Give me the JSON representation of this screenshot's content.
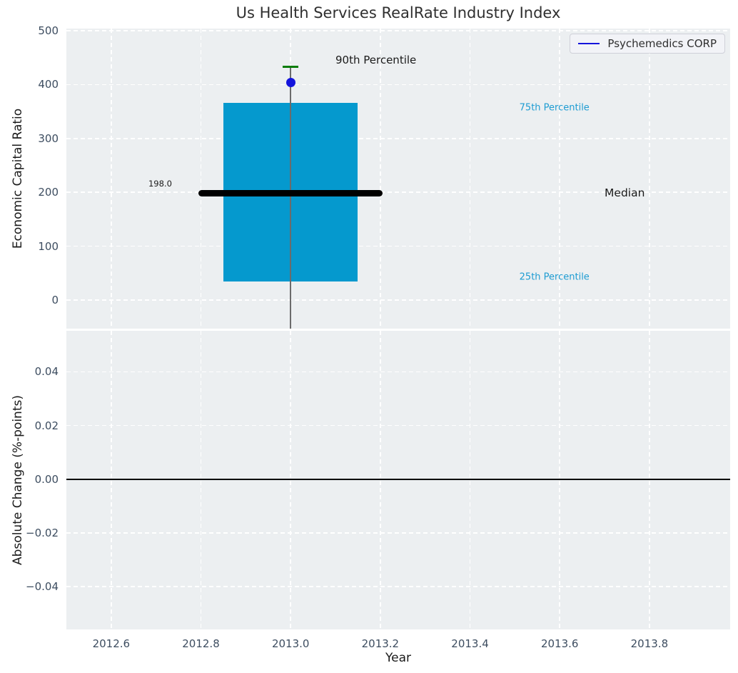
{
  "title": "Us Health Services RealRate Industry Index",
  "legend": {
    "label": "Psychemedics CORP",
    "position": "upper right"
  },
  "colors": {
    "axes_bg": "#ECEFF1",
    "grid": "#FFFFFF",
    "box_fill": "#0599CE",
    "median_line": "#000000",
    "percentile_cap": "#0B7D0B",
    "company_dot": "#1414DC",
    "whisker": "#6B6B6B",
    "tick_label": "#3D4D60",
    "axis_label": "#1A1A1A",
    "title_color": "#2F2F2F",
    "annotation_dark": "#1A1A1A",
    "annotation_cyan": "#1E9CD2",
    "zero_line": "#000000"
  },
  "chart_data": [
    {
      "type": "boxplot",
      "ylabel": "Economic Capital Ratio",
      "xlim": [
        2012.5,
        2013.98
      ],
      "ylim": [
        -53,
        504
      ],
      "grid": true,
      "legend_entries": [
        "Psychemedics CORP"
      ],
      "xticks": [
        {
          "v": 2012.6,
          "label": "2012.6"
        },
        {
          "v": 2012.8,
          "label": "2012.8"
        },
        {
          "v": 2013.0,
          "label": "2013.0"
        },
        {
          "v": 2013.2,
          "label": "2013.2"
        },
        {
          "v": 2013.4,
          "label": "2013.4"
        },
        {
          "v": 2013.6,
          "label": "2013.6"
        },
        {
          "v": 2013.8,
          "label": "2013.8"
        }
      ],
      "yticks": [
        {
          "v": 0,
          "label": "0"
        },
        {
          "v": 100,
          "label": "100"
        },
        {
          "v": 200,
          "label": "200"
        },
        {
          "v": 300,
          "label": "300"
        },
        {
          "v": 400,
          "label": "400"
        },
        {
          "v": 500,
          "label": "500"
        }
      ],
      "box": {
        "year": 2013.0,
        "x_center": 2013.0,
        "x_left": 2012.85,
        "x_right": 2013.15,
        "q1": 34,
        "median": 198,
        "q3": 366,
        "p90": 433,
        "company_value": 404,
        "median_line_x_left": 2012.795,
        "median_line_x_right": 2013.205,
        "cap_x_left": 2012.982,
        "cap_x_right": 2013.018,
        "whisker_bottom_clip": -53
      },
      "annotations": [
        {
          "text": "90th Percentile",
          "x": 2013.1,
          "y": 445,
          "color": "annotation_dark",
          "size": 15
        },
        {
          "text": "75th Percentile",
          "x": 2013.51,
          "y": 357,
          "color": "annotation_cyan",
          "size": 13
        },
        {
          "text": "Median",
          "x": 2013.7,
          "y": 199,
          "color": "annotation_dark",
          "size": 15.5
        },
        {
          "text": "25th Percentile",
          "x": 2013.51,
          "y": 43,
          "color": "annotation_cyan",
          "size": 13
        },
        {
          "text": "198.0",
          "x": 2012.683,
          "y": 216,
          "color": "annotation_dark",
          "size": 11.5
        }
      ]
    },
    {
      "type": "line",
      "xlabel": "Year",
      "ylabel": "Absolute Change (%-points)",
      "xlim": [
        2012.5,
        2013.98
      ],
      "ylim": [
        -0.056,
        0.0553
      ],
      "grid": true,
      "zero_line": 0.0,
      "series": [],
      "xticks": [
        {
          "v": 2012.6,
          "label": "2012.6"
        },
        {
          "v": 2012.8,
          "label": "2012.8"
        },
        {
          "v": 2013.0,
          "label": "2013.0"
        },
        {
          "v": 2013.2,
          "label": "2013.2"
        },
        {
          "v": 2013.4,
          "label": "2013.4"
        },
        {
          "v": 2013.6,
          "label": "2013.6"
        },
        {
          "v": 2013.8,
          "label": "2013.8"
        }
      ],
      "yticks": [
        {
          "v": 0.04,
          "label": "0.04"
        },
        {
          "v": 0.02,
          "label": "0.02"
        },
        {
          "v": 0.0,
          "label": "0.00"
        },
        {
          "v": -0.02,
          "label": "−0.02"
        },
        {
          "v": -0.04,
          "label": "−0.04"
        }
      ]
    }
  ]
}
